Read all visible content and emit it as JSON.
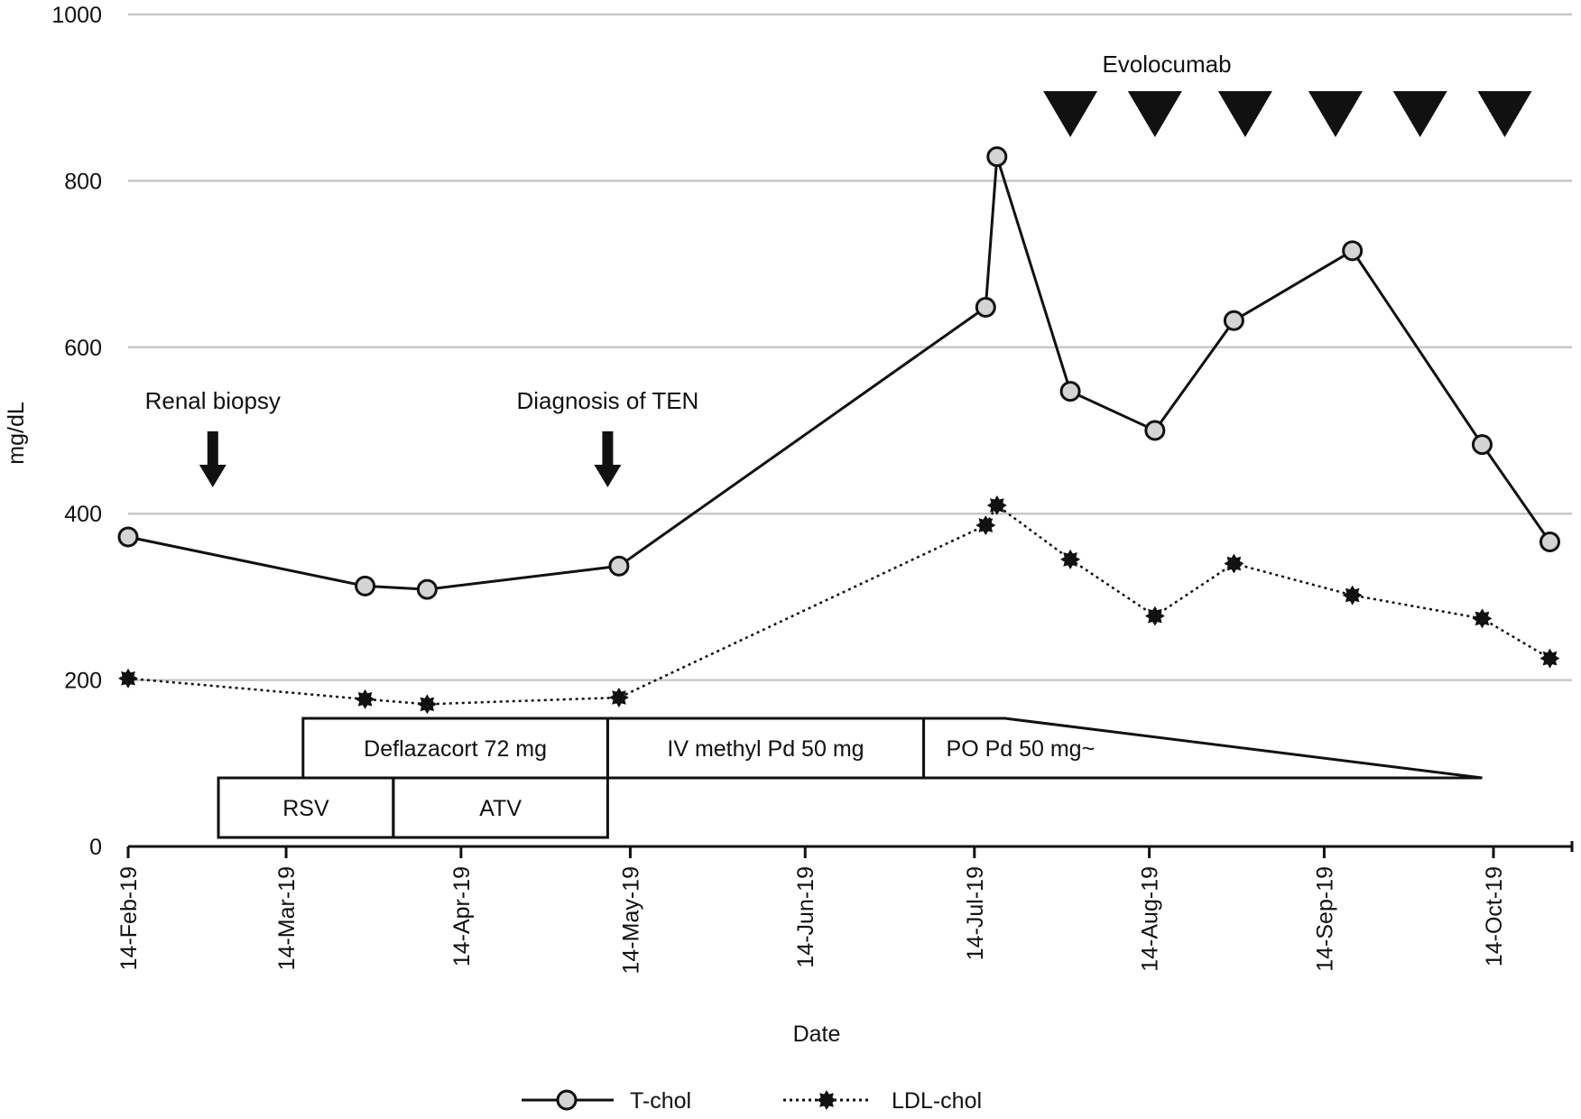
{
  "chart_data": {
    "type": "line",
    "ylabel": "mg/dL",
    "xlabel": "Date",
    "ylim": [
      0,
      1000
    ],
    "y_ticks": [
      0,
      200,
      400,
      600,
      800,
      1000
    ],
    "y_tick_labels": [
      "0",
      "200",
      "400",
      "600",
      "800",
      "1000"
    ],
    "grid": true,
    "x_ticks": [
      {
        "date": "2019-02-14",
        "label": "14-Feb-19"
      },
      {
        "date": "2019-03-14",
        "label": "14-Mar-19"
      },
      {
        "date": "2019-04-14",
        "label": "14-Apr-19"
      },
      {
        "date": "2019-05-14",
        "label": "14-May-19"
      },
      {
        "date": "2019-06-14",
        "label": "14-Jun-19"
      },
      {
        "date": "2019-07-14",
        "label": "14-Jul-19"
      },
      {
        "date": "2019-08-14",
        "label": "14-Aug-19"
      },
      {
        "date": "2019-09-14",
        "label": "14-Sep-19"
      },
      {
        "date": "2019-10-14",
        "label": "14-Oct-19"
      }
    ],
    "x_end": "2019-10-26",
    "legend_position": "bottom",
    "series": [
      {
        "name": "T-chol",
        "line_style": "solid",
        "marker": "circle",
        "marker_color": "#d4d4d4",
        "points": [
          {
            "x": "2019-02-14",
            "y": 372
          },
          {
            "x": "2019-03-28",
            "y": 313
          },
          {
            "x": "2019-04-08",
            "y": 309
          },
          {
            "x": "2019-05-12",
            "y": 337
          },
          {
            "x": "2019-07-16",
            "y": 648
          },
          {
            "x": "2019-07-18",
            "y": 829
          },
          {
            "x": "2019-07-31",
            "y": 547
          },
          {
            "x": "2019-08-15",
            "y": 500
          },
          {
            "x": "2019-08-29",
            "y": 632
          },
          {
            "x": "2019-09-19",
            "y": 716
          },
          {
            "x": "2019-10-12",
            "y": 483
          },
          {
            "x": "2019-10-24",
            "y": 366
          }
        ]
      },
      {
        "name": "LDL-chol",
        "line_style": "dotted",
        "marker": "star",
        "marker_color": "#111111",
        "points": [
          {
            "x": "2019-02-14",
            "y": 202
          },
          {
            "x": "2019-03-28",
            "y": 177
          },
          {
            "x": "2019-04-08",
            "y": 171
          },
          {
            "x": "2019-05-12",
            "y": 179
          },
          {
            "x": "2019-07-16",
            "y": 386
          },
          {
            "x": "2019-07-18",
            "y": 410
          },
          {
            "x": "2019-07-31",
            "y": 345
          },
          {
            "x": "2019-08-15",
            "y": 277
          },
          {
            "x": "2019-08-29",
            "y": 340
          },
          {
            "x": "2019-09-19",
            "y": 302
          },
          {
            "x": "2019-10-12",
            "y": 274
          },
          {
            "x": "2019-10-24",
            "y": 226
          }
        ]
      }
    ],
    "annotations": [
      {
        "label": "Renal biopsy",
        "date": "2019-03-01",
        "marker": "down-arrow"
      },
      {
        "label": "Diagnosis of TEN",
        "date": "2019-05-10",
        "marker": "down-arrow"
      }
    ],
    "evolocumab": {
      "label": "Evolocumab",
      "doses": [
        "2019-07-31",
        "2019-08-15",
        "2019-08-31",
        "2019-09-16",
        "2019-10-01",
        "2019-10-16"
      ]
    },
    "treatments": [
      {
        "label": "Deflazacort 72 mg",
        "start": "2019-03-17",
        "end": "2019-05-10",
        "shape": "box",
        "row": 1
      },
      {
        "label": "IV methyl Pd 50 mg",
        "start": "2019-05-10",
        "end": "2019-07-05",
        "shape": "box",
        "row": 1
      },
      {
        "label": "PO Pd 50 mg~",
        "start": "2019-07-05",
        "end": "2019-10-12",
        "shape": "taper",
        "row": 1
      },
      {
        "label": "RSV",
        "start": "2019-03-02",
        "end": "2019-04-02",
        "shape": "box",
        "row": 2
      },
      {
        "label": "ATV",
        "start": "2019-04-02",
        "end": "2019-05-10",
        "shape": "box",
        "row": 2
      }
    ]
  }
}
